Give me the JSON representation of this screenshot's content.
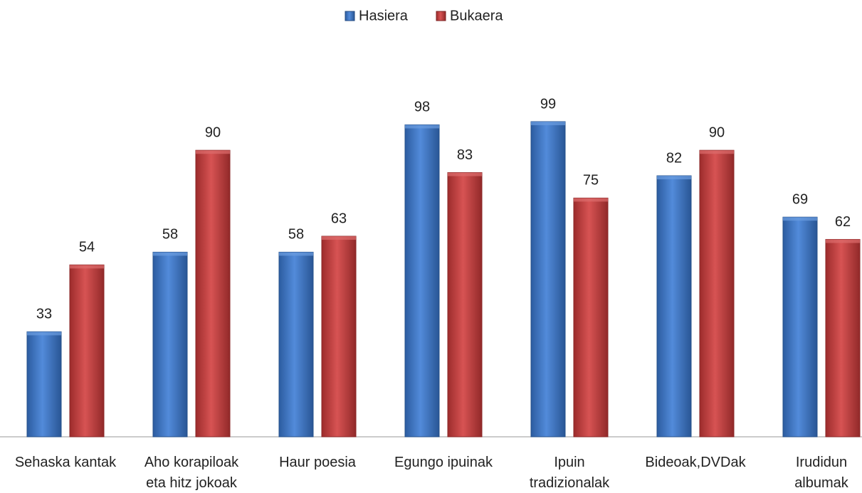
{
  "chart_data": {
    "type": "bar",
    "categories": [
      "Sehaska kantak",
      "Aho korapiloak\neta hitz jokoak",
      "Haur poesia",
      "Egungo ipuinak",
      "Ipuin\ntradizionalak",
      "Bideoak,DVDak",
      "Irudidun\nalbumak"
    ],
    "series": [
      {
        "name": "Hasiera",
        "color": "#3a7bd5",
        "values": [
          33,
          58,
          58,
          98,
          99,
          82,
          69
        ]
      },
      {
        "name": "Bukaera",
        "color": "#d13b3b",
        "values": [
          54,
          90,
          63,
          83,
          75,
          90,
          62
        ]
      }
    ],
    "ylim": [
      0,
      100
    ],
    "legend": "top"
  }
}
